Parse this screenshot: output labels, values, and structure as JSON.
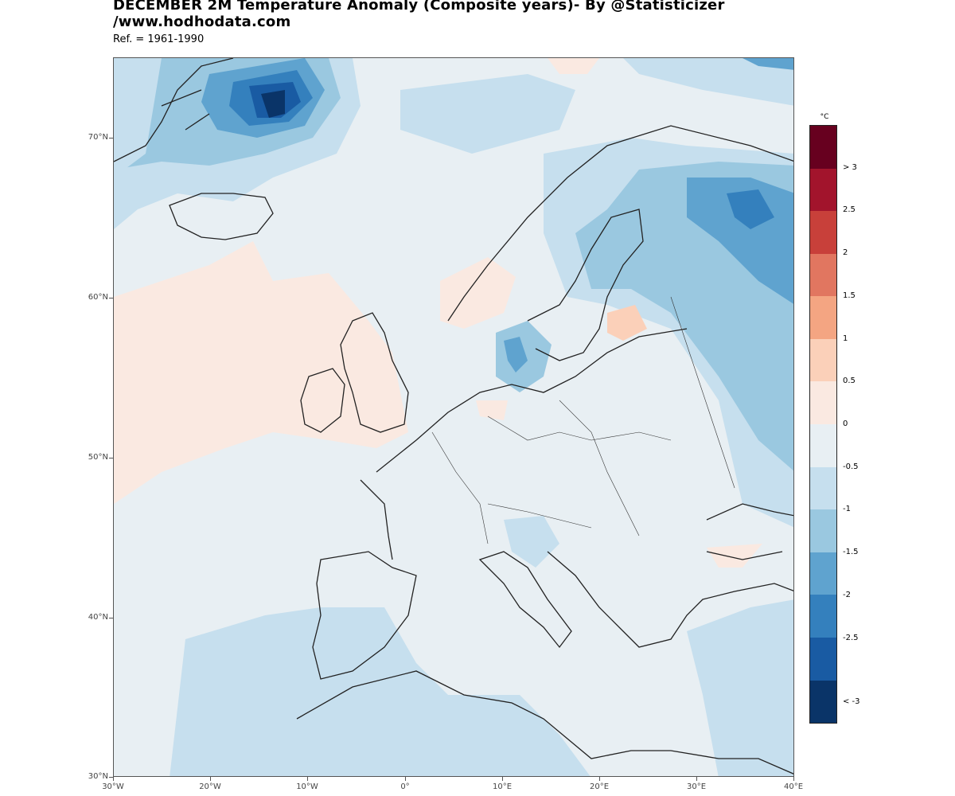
{
  "header": {
    "title_line1": "DECEMBER 2M Temperature Anomaly (Composite years)- By @Statisticizer",
    "title_line2": "/www.hodhodata.com",
    "subtitle": "Ref. = 1961-1990"
  },
  "axes": {
    "lat_labels": [
      "70°N",
      "60°N",
      "50°N",
      "40°N",
      "30°N"
    ],
    "lon_labels": [
      "30°W",
      "20°W",
      "10°W",
      "0°",
      "10°E",
      "20°E",
      "30°E",
      "40°E"
    ]
  },
  "legend": {
    "unit": "°C",
    "labels": [
      "> 3",
      "2.5",
      "2",
      "1.5",
      "1",
      "0.5",
      "0",
      "-0.5",
      "-1",
      "-1.5",
      "-2",
      "-2.5",
      "< -3"
    ],
    "colors": [
      "#67001f",
      "#a2142c",
      "#c8403a",
      "#e17660",
      "#f4a582",
      "#fbd0b9",
      "#fae9e1",
      "#e8eff3",
      "#c6dfee",
      "#9ac8e0",
      "#5fa3cf",
      "#3480bd",
      "#195ba3",
      "#0a3468"
    ]
  },
  "map": {
    "extent": {
      "lon_min": -30,
      "lon_max": 40,
      "lat_min": 30,
      "lat_max": 75
    },
    "land_stroke": "#222222",
    "region_fills": [
      {
        "name": "iceland-greenland-cold-core",
        "value_range": "< -3",
        "color": "#0a3468"
      },
      {
        "name": "north-atlantic-warm",
        "value_range": "0 to 0.5",
        "color": "#fae9e1"
      },
      {
        "name": "russia-cold",
        "value_range": "-1.5 to -2",
        "color": "#5fa3cf"
      },
      {
        "name": "baltic-warm",
        "value_range": "0.5 to 1",
        "color": "#fbd0b9"
      }
    ]
  }
}
